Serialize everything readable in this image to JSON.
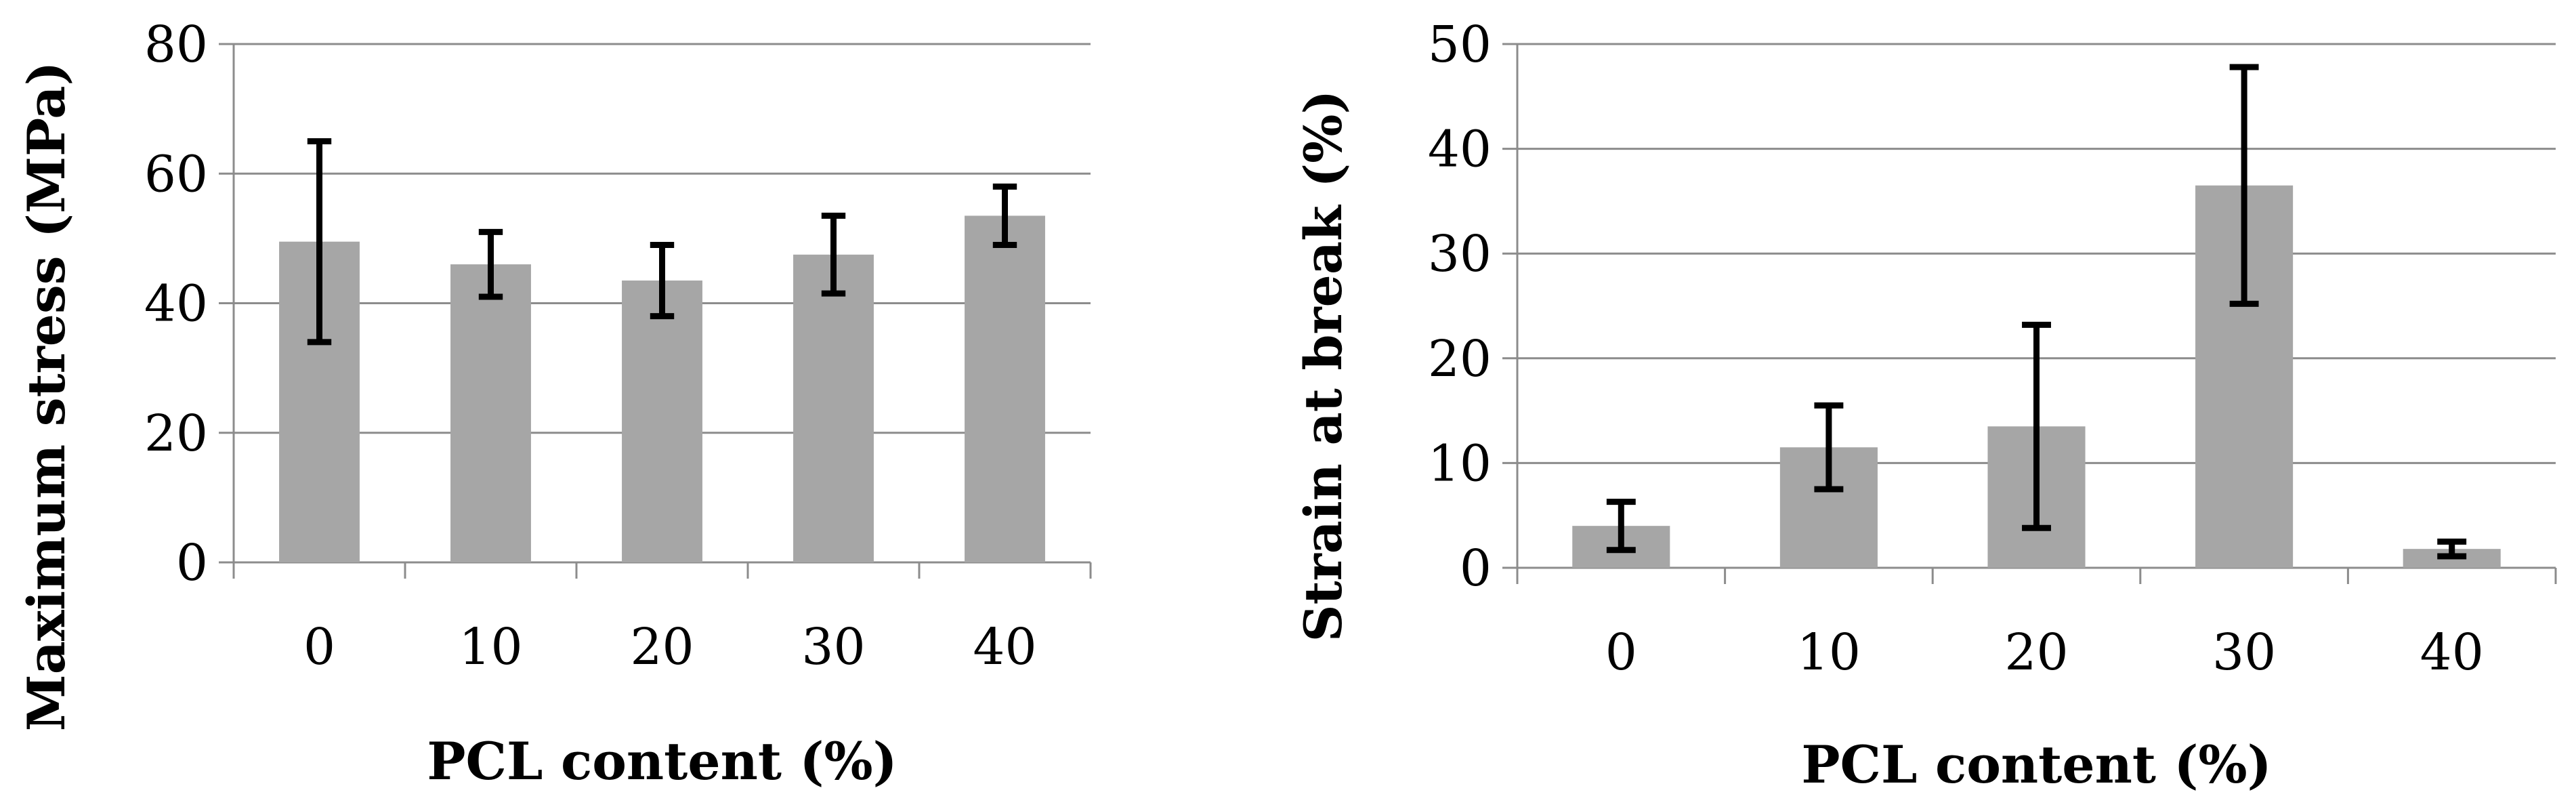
{
  "chart_data": [
    {
      "type": "bar",
      "categories": [
        "0",
        "10",
        "20",
        "30",
        "40"
      ],
      "values": [
        49.5,
        46,
        43.5,
        47.5,
        53.5
      ],
      "errors": [
        15.5,
        5,
        5.5,
        6,
        4.5
      ],
      "xlabel": "PCL content (%)",
      "ylabel": "Maximum stress (MPa)",
      "ylim": [
        0,
        80
      ],
      "yticks": [
        "0",
        "20",
        "40",
        "60",
        "80"
      ],
      "grid": true,
      "bar_color": "#a6a6a6",
      "error_color": "#000000"
    },
    {
      "type": "bar",
      "categories": [
        "0",
        "10",
        "20",
        "30",
        "40"
      ],
      "values": [
        4,
        11.5,
        13.5,
        36.5,
        1.8
      ],
      "errors": [
        2.3,
        4,
        9.7,
        11.3,
        0.7
      ],
      "xlabel": "PCL content (%)",
      "ylabel": "Strain at break (%)",
      "ylim": [
        0,
        50
      ],
      "yticks": [
        "0",
        "10",
        "20",
        "30",
        "40",
        "50"
      ],
      "grid": true,
      "bar_color": "#a6a6a6",
      "error_color": "#000000"
    }
  ]
}
